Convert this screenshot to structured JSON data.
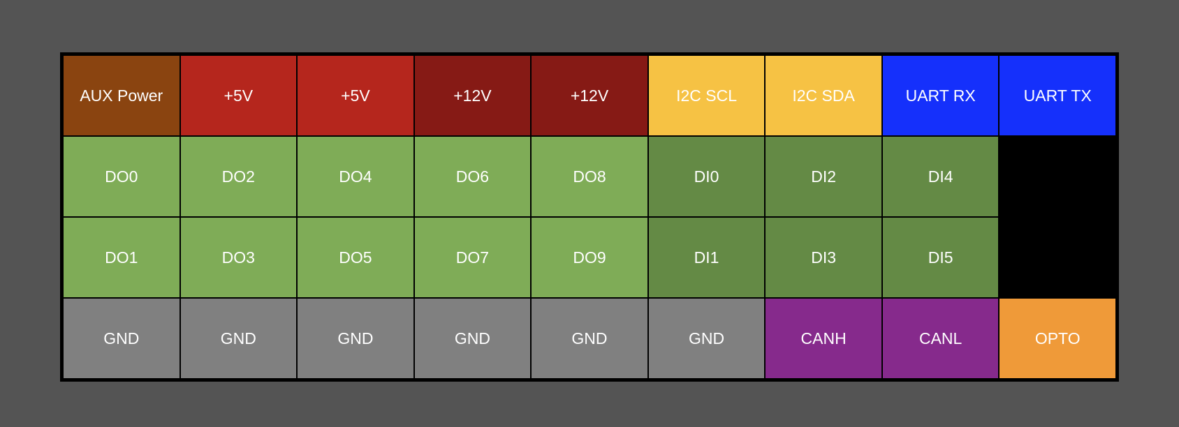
{
  "pinout": {
    "rows": [
      [
        {
          "label": "AUX Power",
          "color": "#8a4410"
        },
        {
          "label": "+5V",
          "color": "#b5261d"
        },
        {
          "label": "+5V",
          "color": "#b5261d"
        },
        {
          "label": "+12V",
          "color": "#861a15"
        },
        {
          "label": "+12V",
          "color": "#861a15"
        },
        {
          "label": "I2C SCL",
          "color": "#f6c244"
        },
        {
          "label": "I2C SDA",
          "color": "#f6c244"
        },
        {
          "label": "UART RX",
          "color": "#1530fb"
        },
        {
          "label": "UART TX",
          "color": "#1530fb"
        }
      ],
      [
        {
          "label": "DO0",
          "color": "#7fac57"
        },
        {
          "label": "DO2",
          "color": "#7fac57"
        },
        {
          "label": "DO4",
          "color": "#7fac57"
        },
        {
          "label": "DO6",
          "color": "#7fac57"
        },
        {
          "label": "DO8",
          "color": "#7fac57"
        },
        {
          "label": "DI0",
          "color": "#648a45"
        },
        {
          "label": "DI2",
          "color": "#648a45"
        },
        {
          "label": "DI4",
          "color": "#648a45"
        },
        {
          "label": "",
          "color": "#000000"
        }
      ],
      [
        {
          "label": "DO1",
          "color": "#7fac57"
        },
        {
          "label": "DO3",
          "color": "#7fac57"
        },
        {
          "label": "DO5",
          "color": "#7fac57"
        },
        {
          "label": "DO7",
          "color": "#7fac57"
        },
        {
          "label": "DO9",
          "color": "#7fac57"
        },
        {
          "label": "DI1",
          "color": "#648a45"
        },
        {
          "label": "DI3",
          "color": "#648a45"
        },
        {
          "label": "DI5",
          "color": "#648a45"
        },
        {
          "label": "",
          "color": "#000000"
        }
      ],
      [
        {
          "label": "GND",
          "color": "#808080"
        },
        {
          "label": "GND",
          "color": "#808080"
        },
        {
          "label": "GND",
          "color": "#808080"
        },
        {
          "label": "GND",
          "color": "#808080"
        },
        {
          "label": "GND",
          "color": "#808080"
        },
        {
          "label": "GND",
          "color": "#808080"
        },
        {
          "label": "CANH",
          "color": "#862a8c"
        },
        {
          "label": "CANL",
          "color": "#862a8c"
        },
        {
          "label": "OPTO",
          "color": "#ef9a39"
        }
      ]
    ]
  }
}
